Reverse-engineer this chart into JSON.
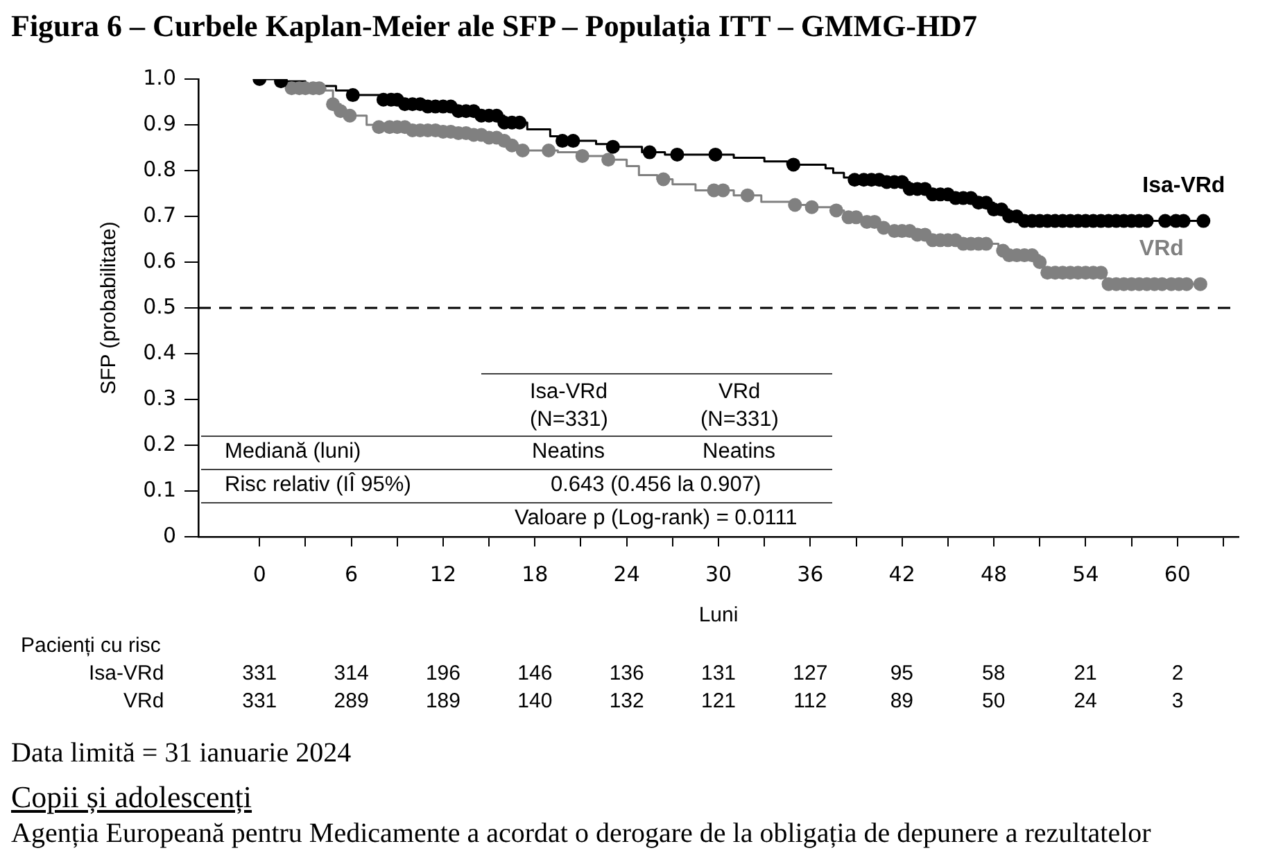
{
  "chart_data": {
    "type": "step",
    "title": "Figura 6 – Curbele Kaplan-Meier ale SFP – Populația ITT – GMMG-HD7",
    "xlabel": "Luni",
    "ylabel": "SFP (probabilitate)",
    "xlim": [
      -4,
      64
    ],
    "xticks": [
      0,
      {
        "value": 3,
        "label": null
      },
      6,
      {
        "value": 9,
        "label": null
      },
      12,
      {
        "value": 15,
        "label": null
      },
      18,
      {
        "value": 21,
        "label": null
      },
      24,
      {
        "value": 27,
        "label": null
      },
      30,
      {
        "value": 33,
        "label": null
      },
      36,
      {
        "value": 39,
        "label": null
      },
      42,
      {
        "value": 45,
        "label": null
      },
      48,
      {
        "value": 51,
        "label": null
      },
      54,
      {
        "value": 57,
        "label": null
      },
      60,
      {
        "value": 63,
        "label": null
      }
    ],
    "ylim": [
      0,
      1
    ],
    "yticks": [
      0,
      0.1,
      0.2,
      0.3,
      0.4,
      0.5,
      0.6,
      0.7,
      0.8,
      0.9,
      {
        "value": 1,
        "label": "1.0"
      }
    ],
    "grid": false,
    "ref_lines": [
      {
        "axis": "y",
        "value": 0.5,
        "color": "#000000",
        "line_style": "dashed"
      }
    ],
    "series": [
      {
        "name": "Isa-VRd",
        "color": "#000000",
        "x": [
          0,
          1.4,
          3,
          5,
          6,
          8,
          9.5,
          11,
          13,
          14.5,
          16,
          17.5,
          19,
          19.5,
          22,
          23,
          25,
          26.5,
          31,
          33,
          34.5,
          37,
          37.5,
          38.2,
          38.8,
          41,
          42.5,
          44,
          45.5,
          47,
          48,
          49,
          49.8,
          61.7
        ],
        "values": [
          1,
          0.995,
          0.985,
          0.975,
          0.965,
          0.955,
          0.945,
          0.94,
          0.93,
          0.92,
          0.905,
          0.89,
          0.875,
          0.865,
          0.858,
          0.852,
          0.84,
          0.835,
          0.828,
          0.82,
          0.813,
          0.805,
          0.795,
          0.785,
          0.78,
          0.775,
          0.76,
          0.748,
          0.74,
          0.73,
          0.715,
          0.7,
          0.69,
          0.69
        ]
      },
      {
        "name": "VRd",
        "color": "#808080",
        "x": [
          0,
          1.5,
          2,
          4.3,
          4.8,
          5.3,
          5.9,
          7,
          7.8,
          10,
          12,
          13,
          14,
          15,
          16,
          16.5,
          17,
          19.5,
          21,
          22.5,
          24,
          24.8,
          26,
          27,
          28.5,
          31,
          32.8,
          35,
          36,
          37.5,
          38.2,
          39.5,
          40.5,
          41,
          43,
          44,
          46,
          48.3,
          49,
          51,
          51.3,
          55.3,
          61.5
        ],
        "values": [
          1,
          0.99,
          0.98,
          0.975,
          0.945,
          0.93,
          0.92,
          0.9,
          0.895,
          0.888,
          0.885,
          0.882,
          0.878,
          0.872,
          0.865,
          0.855,
          0.844,
          0.84,
          0.832,
          0.824,
          0.81,
          0.79,
          0.781,
          0.77,
          0.757,
          0.746,
          0.732,
          0.725,
          0.72,
          0.713,
          0.698,
          0.688,
          0.675,
          0.668,
          0.66,
          0.648,
          0.64,
          0.625,
          0.615,
          0.6,
          0.577,
          0.552,
          0.552
        ]
      },
      {
        "type": "scatter",
        "color": "#000000",
        "x": [
          0,
          1.4,
          6.1,
          8.1,
          8.6,
          9,
          9.5,
          10,
          10.5,
          11,
          11.5,
          12,
          12.5,
          13,
          13.5,
          14,
          14.5,
          15,
          15.5,
          16,
          16.5,
          17,
          19.8,
          20.5,
          23.1,
          25.5,
          27.3,
          29.8,
          34.9,
          38.9,
          39.5,
          40,
          40.5,
          41,
          41.5,
          42,
          42.5,
          43,
          43.5,
          44,
          44.5,
          45,
          45.5,
          46,
          46.5,
          47,
          47.5,
          48,
          48.5,
          49,
          49.5,
          50,
          50.5,
          51,
          51.5,
          52,
          52.5,
          53,
          53.5,
          54,
          54.5,
          55,
          55.5,
          56,
          56.5,
          57,
          57.5,
          58,
          59.2,
          59.9,
          60.4,
          61.7
        ],
        "values": [
          1,
          0.995,
          0.965,
          0.955,
          0.955,
          0.955,
          0.945,
          0.945,
          0.945,
          0.94,
          0.94,
          0.94,
          0.94,
          0.93,
          0.93,
          0.93,
          0.92,
          0.92,
          0.92,
          0.905,
          0.905,
          0.905,
          0.865,
          0.865,
          0.852,
          0.84,
          0.835,
          0.835,
          0.813,
          0.78,
          0.78,
          0.78,
          0.78,
          0.775,
          0.775,
          0.775,
          0.76,
          0.76,
          0.76,
          0.748,
          0.748,
          0.748,
          0.74,
          0.74,
          0.74,
          0.73,
          0.73,
          0.715,
          0.715,
          0.7,
          0.7,
          0.69,
          0.69,
          0.69,
          0.69,
          0.69,
          0.69,
          0.69,
          0.69,
          0.69,
          0.69,
          0.69,
          0.69,
          0.69,
          0.69,
          0.69,
          0.69,
          0.69,
          0.69,
          0.69,
          0.69,
          0.69
        ]
      },
      {
        "type": "scatter",
        "color": "#808080",
        "x": [
          2.1,
          2.6,
          3,
          3.5,
          3.9,
          4.8,
          5.3,
          5.9,
          7.8,
          8.5,
          9,
          9.5,
          10,
          10.5,
          11,
          11.5,
          12,
          12.5,
          13,
          13.5,
          14,
          14.5,
          15,
          15.5,
          16,
          16.5,
          17.2,
          18.9,
          21.1,
          22.8,
          26.4,
          29.7,
          30.3,
          31.9,
          35,
          36.1,
          37.7,
          38.5,
          39,
          39.7,
          40.2,
          40.8,
          41.5,
          42,
          42.5,
          43,
          43.5,
          44,
          44.5,
          45,
          45.5,
          46,
          46.5,
          47,
          47.5,
          48.6,
          49,
          49.5,
          50,
          50.5,
          51,
          51.5,
          52,
          52.5,
          53,
          53.5,
          54,
          54.5,
          55,
          55.5,
          56,
          56.5,
          57,
          57.5,
          58,
          58.5,
          59,
          59.6,
          60.1,
          60.6,
          61.5
        ],
        "values": [
          0.98,
          0.98,
          0.98,
          0.98,
          0.98,
          0.945,
          0.93,
          0.92,
          0.895,
          0.895,
          0.895,
          0.895,
          0.888,
          0.888,
          0.888,
          0.888,
          0.885,
          0.885,
          0.882,
          0.882,
          0.878,
          0.878,
          0.872,
          0.872,
          0.865,
          0.855,
          0.844,
          0.844,
          0.832,
          0.824,
          0.781,
          0.757,
          0.757,
          0.746,
          0.725,
          0.72,
          0.713,
          0.698,
          0.698,
          0.688,
          0.688,
          0.675,
          0.668,
          0.668,
          0.668,
          0.66,
          0.66,
          0.648,
          0.648,
          0.648,
          0.648,
          0.64,
          0.64,
          0.64,
          0.64,
          0.625,
          0.615,
          0.615,
          0.615,
          0.615,
          0.6,
          0.577,
          0.577,
          0.577,
          0.577,
          0.577,
          0.577,
          0.577,
          0.577,
          0.552,
          0.552,
          0.552,
          0.552,
          0.552,
          0.552,
          0.552,
          0.552,
          0.552,
          0.552,
          0.552,
          0.552
        ]
      }
    ],
    "annotations": [
      "Isa-VRd",
      "(N=331)",
      "VRd",
      "(N=331)",
      "Mediană (luni)",
      "Neatins",
      "Neatins",
      "Risc relativ (IÎ 95%)",
      "0.643 (0.456 la 0.907)",
      "Valoare p (Log-rank) = 0.0111",
      "Pacienți cu risc",
      "Isa-VRd",
      "331",
      "314",
      "196",
      "146",
      "136",
      "131",
      "127",
      "95",
      "58",
      "21",
      "2",
      "VRd",
      "331",
      "289",
      "189",
      "140",
      "132",
      "121",
      "112",
      "89",
      "50",
      "24",
      "3",
      "Data limită = 31 ianuarie 2024",
      "Copii și adolescenți",
      "Agenția Europeană pentru Medicamente a acordat o derogare de la obligația de depunere a rezultatelor"
    ]
  }
}
